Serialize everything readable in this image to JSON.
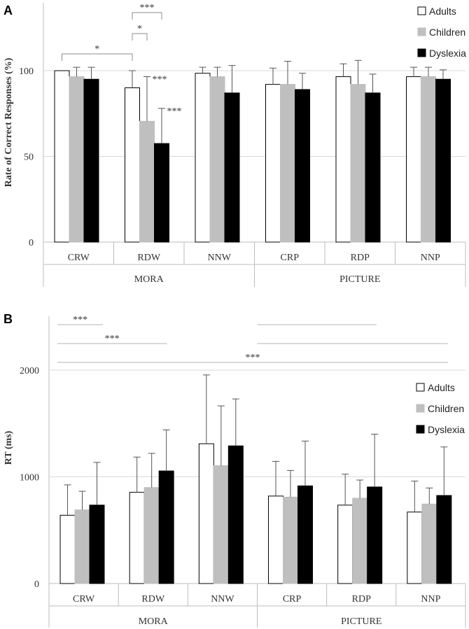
{
  "chart_data": [
    {
      "panel_label": "A",
      "type": "bar",
      "ylabel": "Rate of Correct Responses (%)",
      "ylim": [
        0,
        140
      ],
      "yticks": [
        "0",
        "50",
        "100"
      ],
      "categories": [
        "CRW",
        "RDW",
        "NNW",
        "CRP",
        "RDP",
        "NNP"
      ],
      "groups": [
        {
          "label": "MORA",
          "categories": [
            "CRW",
            "RDW",
            "NNW"
          ]
        },
        {
          "label": "PICTURE",
          "categories": [
            "CRP",
            "RDP",
            "NNP"
          ]
        }
      ],
      "series": [
        {
          "name": "Adults",
          "color": "#ffffff",
          "values": [
            100,
            90,
            98.5,
            92,
            96.5,
            96.5
          ],
          "errors": [
            0,
            10,
            3.5,
            9.5,
            7.5,
            5.5
          ]
        },
        {
          "name": "Children",
          "color": "#bfbfbf",
          "values": [
            96.5,
            70.5,
            96.5,
            92,
            92,
            96.5
          ],
          "errors": [
            5.5,
            26,
            5.5,
            13.5,
            14,
            5.5
          ]
        },
        {
          "name": "Dyslexia",
          "color": "#000000",
          "values": [
            95,
            57.5,
            87,
            89,
            87,
            95
          ],
          "errors": [
            7,
            20.5,
            16,
            9.5,
            11,
            5.5
          ]
        }
      ],
      "legend": {
        "position": "top-right",
        "entries": [
          "Adults",
          "Children",
          "Dyslexia"
        ]
      },
      "annotations": [
        {
          "text": "***",
          "type": "bracket",
          "from": {
            "cat": 1,
            "series": 0
          },
          "to": {
            "cat": 1,
            "series": 2
          },
          "level": 3
        },
        {
          "text": "*",
          "type": "bracket",
          "from": {
            "cat": 1,
            "series": 0
          },
          "to": {
            "cat": 1,
            "series": 1
          },
          "level": 2
        },
        {
          "text": "*",
          "type": "bracket",
          "from": {
            "cat": 0,
            "series": 0
          },
          "to": {
            "cat": 1,
            "series": 0
          },
          "level": 1
        },
        {
          "text": "***",
          "type": "label",
          "cat": 1,
          "series": 1
        },
        {
          "text": "***",
          "type": "label",
          "cat": 1,
          "series": 2
        }
      ]
    },
    {
      "panel_label": "B",
      "type": "bar",
      "ylabel": "RT (ms)",
      "ylim": [
        0,
        2500
      ],
      "yticks": [
        "0",
        "1000",
        "2000"
      ],
      "categories": [
        "CRW",
        "RDW",
        "NNW",
        "CRP",
        "RDP",
        "NNP"
      ],
      "groups": [
        {
          "label": "MORA",
          "categories": [
            "CRW",
            "RDW",
            "NNW"
          ]
        },
        {
          "label": "PICTURE",
          "categories": [
            "CRP",
            "RDP",
            "NNP"
          ]
        }
      ],
      "series": [
        {
          "name": "Adults",
          "color": "#ffffff",
          "values": [
            640,
            855,
            1310,
            820,
            735,
            670
          ],
          "errors": [
            285,
            330,
            645,
            325,
            290,
            290
          ]
        },
        {
          "name": "Children",
          "color": "#bfbfbf",
          "values": [
            690,
            900,
            1105,
            810,
            800,
            745
          ],
          "errors": [
            175,
            320,
            560,
            250,
            170,
            150
          ]
        },
        {
          "name": "Dyslexia",
          "color": "#000000",
          "values": [
            735,
            1055,
            1290,
            915,
            905,
            825
          ],
          "errors": [
            400,
            385,
            440,
            420,
            495,
            455
          ]
        }
      ],
      "legend": {
        "position": "top-right",
        "entries": [
          "Adults",
          "Children",
          "Dyslexia"
        ]
      },
      "annotations": [
        {
          "text": "***",
          "type": "line",
          "from_cat": 0,
          "to_cat": 0,
          "level": 3
        },
        {
          "text": "***",
          "type": "line",
          "from_cat": 0,
          "to_cat": 1,
          "level": 2
        },
        {
          "text": "***",
          "type": "line",
          "from_cat": 0,
          "to_cat": 5,
          "level": 1
        },
        {
          "text": "",
          "type": "line",
          "from_cat": 3,
          "to_cat": 4,
          "level": 3
        },
        {
          "text": "",
          "type": "line",
          "from_cat": 3,
          "to_cat": 5,
          "level": 2
        }
      ]
    }
  ]
}
